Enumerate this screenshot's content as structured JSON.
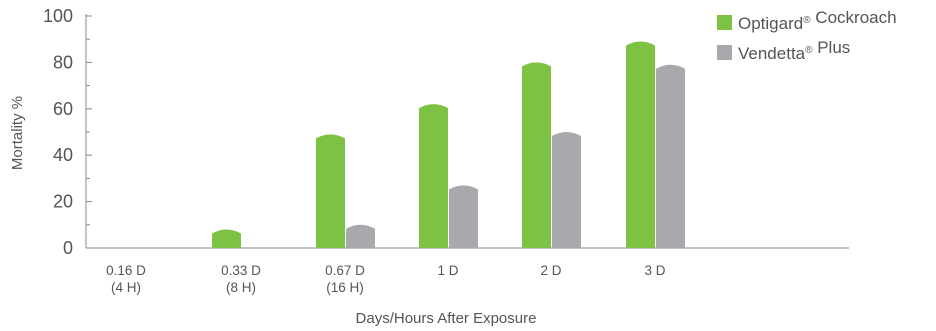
{
  "chart_data": {
    "type": "bar",
    "categories": [
      [
        "0.16 D",
        "(4 H)"
      ],
      [
        "0.33 D",
        "(8 H)"
      ],
      [
        "0.67 D",
        "(16 H)"
      ],
      [
        "1 D"
      ],
      [
        "2 D"
      ],
      [
        "3 D"
      ]
    ],
    "series": [
      {
        "name": "Optigard® Cockroach",
        "color": "#7dc242",
        "values": [
          0,
          8,
          49,
          62,
          80,
          89
        ]
      },
      {
        "name": "Vendetta® Plus",
        "color": "#a7a9ac",
        "values": [
          0,
          0,
          10,
          27,
          50,
          79
        ]
      }
    ],
    "xlabel": "Days/Hours After Exposure",
    "ylabel": "Mortality %",
    "ylim": [
      0,
      100
    ],
    "yticks": [
      0,
      20,
      40,
      60,
      80,
      100
    ],
    "grid": false,
    "legend_position": "top-right"
  }
}
